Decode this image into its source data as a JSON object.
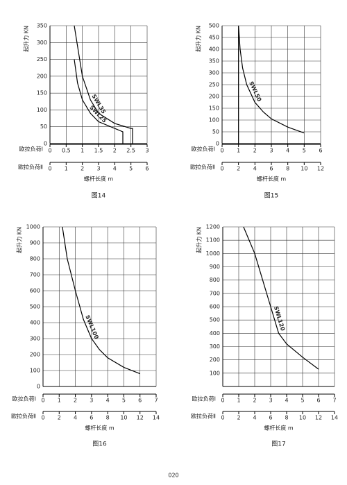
{
  "page_number": "020",
  "chart_data": [
    {
      "type": "line",
      "caption": "图14",
      "ylabel": "起升力 KN",
      "xlabel": "螺杆长度 m",
      "x_row_label": "欧拉负荷Ⅰ",
      "x2_row_label": "欧拉负荷Ⅱ",
      "xlim": [
        0,
        3
      ],
      "xticks": [
        0,
        0.5,
        1,
        1.5,
        2,
        2.5,
        3
      ],
      "x2lim": [
        0,
        6
      ],
      "x2ticks": [
        0,
        1,
        2,
        3,
        4,
        5,
        6
      ],
      "ylim": [
        0,
        350
      ],
      "yticks": [
        0,
        50,
        100,
        150,
        200,
        250,
        300,
        350
      ],
      "grid": true,
      "series": [
        {
          "name": "SWL35",
          "color": "#000000",
          "x": [
            0.75,
            0.9,
            1.0,
            1.25,
            1.5,
            2.0,
            2.5,
            2.55,
            2.55
          ],
          "values": [
            350,
            260,
            200,
            130,
            90,
            60,
            45,
            45,
            0
          ]
        },
        {
          "name": "SWL25",
          "color": "#000000",
          "x": [
            0.75,
            0.85,
            1.0,
            1.25,
            1.5,
            2.0,
            2.25,
            2.25
          ],
          "values": [
            250,
            180,
            130,
            90,
            65,
            45,
            35,
            0
          ]
        }
      ]
    },
    {
      "type": "line",
      "caption": "图15",
      "ylabel": "起升力 KN",
      "xlabel": "螺杆长度 m",
      "x_row_label": "欧拉负荷Ⅰ",
      "x2_row_label": "欧拉负荷Ⅱ",
      "xlim": [
        0,
        6
      ],
      "xticks": [
        0,
        1,
        2,
        3,
        4,
        5,
        6
      ],
      "x2lim": [
        0,
        12
      ],
      "x2ticks": [
        0,
        2,
        4,
        6,
        8,
        10,
        12
      ],
      "ylim": [
        0,
        500
      ],
      "yticks": [
        0,
        50,
        100,
        150,
        200,
        250,
        300,
        350,
        400,
        450,
        500
      ],
      "grid": true,
      "series": [
        {
          "name": "SWL50",
          "color": "#000000",
          "x": [
            1,
            1,
            1.1,
            1.25,
            1.5,
            2,
            2.5,
            3,
            4,
            5
          ],
          "values": [
            0,
            500,
            400,
            320,
            250,
            175,
            135,
            105,
            70,
            45
          ]
        }
      ]
    },
    {
      "type": "line",
      "caption": "图16",
      "ylabel": "起升力 KN",
      "xlabel": "螺杆长度 m",
      "x_row_label": "欧拉负荷Ⅰ",
      "x2_row_label": "欧拉负荷Ⅱ",
      "xlim": [
        0,
        7
      ],
      "xticks": [
        0,
        1,
        2,
        3,
        4,
        5,
        6,
        7
      ],
      "x2lim": [
        0,
        14
      ],
      "x2ticks": [
        0,
        2,
        4,
        6,
        8,
        10,
        12,
        14
      ],
      "ylim": [
        0,
        1000
      ],
      "yticks": [
        0,
        100,
        200,
        300,
        400,
        500,
        600,
        700,
        800,
        900,
        1000
      ],
      "grid": true,
      "series": [
        {
          "name": "SWL100",
          "color": "#000000",
          "x": [
            1.2,
            1.5,
            2,
            2.5,
            3,
            3.5,
            4,
            5,
            6
          ],
          "values": [
            1000,
            800,
            600,
            420,
            300,
            230,
            180,
            120,
            80
          ]
        }
      ]
    },
    {
      "type": "line",
      "caption": "图17",
      "ylabel": "起升力 KN",
      "xlabel": "螺杆长度 m",
      "x_row_label": "欧拉负荷Ⅰ",
      "x2_row_label": "欧拉负荷Ⅱ",
      "xlim": [
        0,
        7
      ],
      "xticks": [
        0,
        1,
        2,
        3,
        4,
        5,
        6,
        7
      ],
      "x2lim": [
        0,
        14
      ],
      "x2ticks": [
        0,
        2,
        4,
        6,
        8,
        10,
        12,
        14
      ],
      "ylim": [
        0,
        1200
      ],
      "yticks": [
        100,
        200,
        300,
        400,
        500,
        600,
        700,
        800,
        900,
        1000,
        1100,
        1200
      ],
      "grid": true,
      "series": [
        {
          "name": "SWL120",
          "color": "#000000",
          "x": [
            1.3,
            2,
            2.5,
            3,
            3.5,
            4,
            5,
            6
          ],
          "values": [
            1200,
            1000,
            800,
            600,
            400,
            320,
            220,
            130
          ]
        }
      ]
    }
  ]
}
